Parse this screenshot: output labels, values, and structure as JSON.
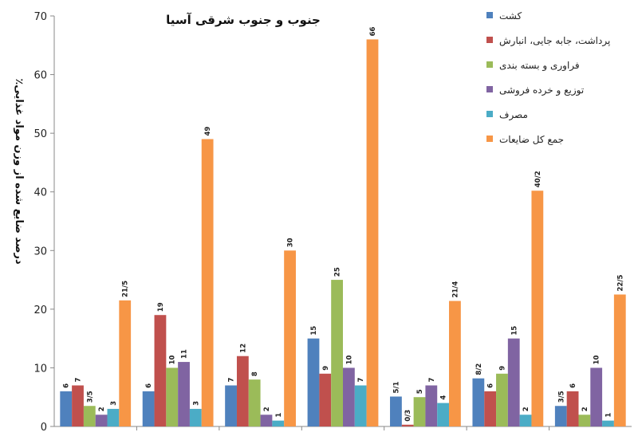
{
  "chart_data": {
    "type": "bar",
    "title": "جنوب و جنوب شرقی آسیا",
    "ylabel": "درصد ضایع شده از وزن مواد غذایی٪",
    "ylim": [
      0,
      70
    ],
    "yticks": [
      0,
      10,
      20,
      30,
      40,
      50,
      60,
      70
    ],
    "grid": false,
    "legend_position": "top-right",
    "categories": [
      "",
      "",
      "",
      "",
      "",
      "",
      ""
    ],
    "series": [
      {
        "name": "کشت",
        "color": "#4F81BD",
        "values": [
          6,
          6,
          7,
          15,
          5.1,
          8.2,
          3.5
        ],
        "labels": [
          "6",
          "6",
          "7",
          "15",
          "5/1",
          "8/2",
          "3/5"
        ]
      },
      {
        "name": "پرداشت، جابه جایی، انبارش",
        "color": "#C0504D",
        "values": [
          7,
          19,
          12,
          9,
          0.3,
          6,
          6
        ],
        "labels": [
          "7",
          "19",
          "12",
          "9",
          "0/3",
          "6",
          "6"
        ]
      },
      {
        "name": "فراوری و بسته بندی",
        "color": "#9BBB59",
        "values": [
          3.5,
          10,
          8,
          25,
          5,
          9,
          2
        ],
        "labels": [
          "3/5",
          "10",
          "8",
          "25",
          "5",
          "9",
          "2"
        ]
      },
      {
        "name": "توزیع و خرده فروشی",
        "color": "#8064A2",
        "values": [
          2,
          11,
          2,
          10,
          7,
          15,
          10
        ],
        "labels": [
          "2",
          "11",
          "2",
          "10",
          "7",
          "15",
          "10"
        ]
      },
      {
        "name": "مصرف",
        "color": "#4BACC6",
        "values": [
          3,
          3,
          1,
          7,
          4,
          2,
          1
        ],
        "labels": [
          "3",
          "3",
          "1",
          "7",
          "4",
          "2",
          "1"
        ]
      },
      {
        "name": "جمع کل ضایعات",
        "color": "#F79646",
        "values": [
          21.5,
          49,
          30,
          66,
          21.4,
          40.2,
          22.5
        ],
        "labels": [
          "21/5",
          "49",
          "30",
          "66",
          "21/4",
          "40/2",
          "22/5"
        ]
      }
    ]
  }
}
